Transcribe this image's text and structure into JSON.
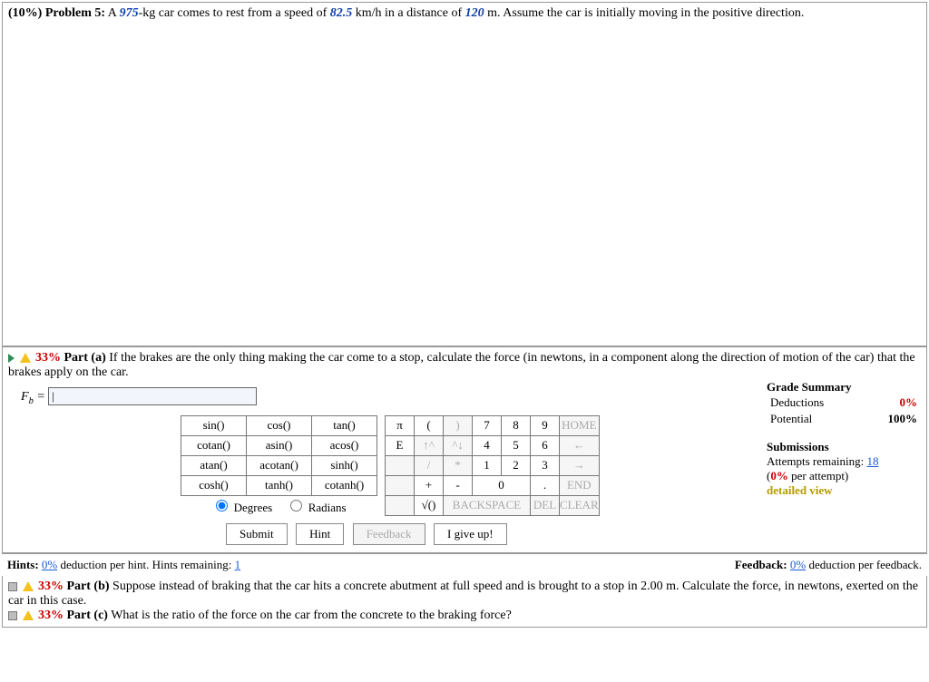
{
  "problem": {
    "weight": "(10%)",
    "label": "Problem 5:",
    "text_pre": "A ",
    "mass": "975",
    "text_mid1": "-kg car comes to rest from a speed of ",
    "speed": "82.5",
    "text_mid2": " km/h in a distance of ",
    "distance": "120",
    "text_post": " m. Assume the car is initially moving in the positive direction."
  },
  "part_a": {
    "icon_pct": "33%",
    "label": "Part (a)",
    "text": "If the brakes are the only thing making the car come to a stop, calculate the force (in newtons, in a component along the direction of motion of the car) that the brakes apply on the car.",
    "input_symbol_main": "F",
    "input_symbol_sub": "b",
    "input_eq": " = ",
    "input_value": "|"
  },
  "grade": {
    "title": "Grade Summary",
    "rows": [
      {
        "label": "Deductions",
        "value": "0%",
        "value_class": "val-red"
      },
      {
        "label": "Potential",
        "value": "100%"
      }
    ],
    "subs_title": "Submissions",
    "attempts_label": "Attempts remaining: ",
    "attempts_value": "18",
    "per_attempt_pre": "(",
    "per_attempt_val": "0%",
    "per_attempt_post": " per attempt)",
    "detailed": "detailed view"
  },
  "fn_grid": [
    [
      "sin()",
      "cos()",
      "tan()"
    ],
    [
      "cotan()",
      "asin()",
      "acos()"
    ],
    [
      "atan()",
      "acotan()",
      "sinh()"
    ],
    [
      "cosh()",
      "tanh()",
      "cotanh()"
    ]
  ],
  "deg_radio": {
    "degrees": "Degrees",
    "radians": "Radians"
  },
  "num_grid": [
    [
      {
        "t": "π"
      },
      {
        "t": "("
      },
      {
        "t": ")",
        "dim": true
      },
      {
        "t": "7"
      },
      {
        "t": "8"
      },
      {
        "t": "9"
      },
      {
        "t": "HOME",
        "dim": true,
        "wide": true
      }
    ],
    [
      {
        "t": "E"
      },
      {
        "t": "↑^",
        "dim": true
      },
      {
        "t": "^↓",
        "dim": true
      },
      {
        "t": "4"
      },
      {
        "t": "5"
      },
      {
        "t": "6"
      },
      {
        "t": "←",
        "dim": true,
        "wide": true
      }
    ],
    [
      {
        "t": "",
        "dim": true
      },
      {
        "t": "/",
        "dim": true
      },
      {
        "t": "*",
        "dim": true
      },
      {
        "t": "1"
      },
      {
        "t": "2"
      },
      {
        "t": "3"
      },
      {
        "t": "→",
        "dim": true,
        "wide": true
      }
    ],
    [
      {
        "t": "",
        "dim": true
      },
      {
        "t": "+"
      },
      {
        "t": "-"
      },
      {
        "t": "0",
        "wide": true
      },
      {
        "t": "."
      },
      {
        "t": "END",
        "dim": true,
        "wide": true
      }
    ],
    [
      {
        "t": "",
        "dim": true
      },
      {
        "t": "√()"
      },
      {
        "t": "BACKSPACE",
        "dim": true,
        "wide3": true
      },
      {
        "t": "DEL",
        "dim": true
      },
      {
        "t": "CLEAR",
        "dim": true,
        "wide": true
      }
    ]
  ],
  "buttons": {
    "submit": "Submit",
    "hint": "Hint",
    "feedback": "Feedback",
    "giveup": "I give up!"
  },
  "hints": {
    "left_pre": "Hints: ",
    "left_val": "0%",
    "left_mid": " deduction per hint. Hints remaining: ",
    "left_remain": "1",
    "right_pre": "Feedback: ",
    "right_val": "0%",
    "right_post": " deduction per feedback."
  },
  "part_b": {
    "icon_pct": "33%",
    "label": "Part (b)",
    "text": "Suppose instead of braking that the car hits a concrete abutment at full speed and is brought to a stop in 2.00 m. Calculate the force, in newtons, exerted on the car in this case."
  },
  "part_c": {
    "icon_pct": "33%",
    "label": "Part (c)",
    "text": "What is the ratio of the force on the car from the concrete to the braking force?"
  }
}
